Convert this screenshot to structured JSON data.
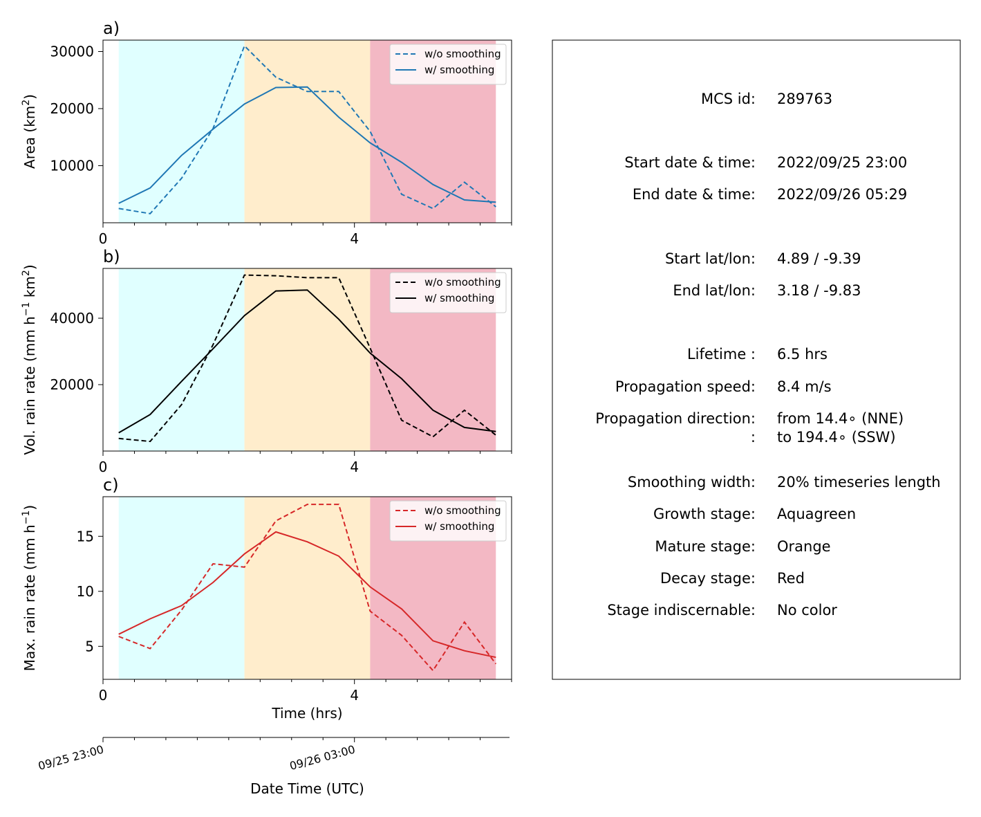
{
  "chart_data": [
    {
      "panel_label": "a)",
      "type": "line",
      "ylabel": "Area  (km",
      "ylabel_sup": "2",
      "ylabel_tail": ")",
      "xlim": [
        0,
        6.5
      ],
      "ylim": [
        0,
        32000
      ],
      "xticks": [
        0,
        4
      ],
      "xtick_labels": [
        "0",
        "4"
      ],
      "yticks": [
        10000,
        20000,
        30000
      ],
      "ytick_labels": [
        "10000",
        "20000",
        "30000"
      ],
      "legend": "top-right",
      "series": [
        {
          "name": "w/o smoothing",
          "style": "dashed",
          "color": "#1f77b4",
          "x": [
            0.25,
            0.75,
            1.25,
            1.75,
            2.25,
            2.75,
            3.25,
            3.75,
            4.25,
            4.75,
            5.25,
            5.75,
            6.25
          ],
          "y": [
            2500,
            1600,
            7800,
            16500,
            31000,
            25500,
            23000,
            23000,
            16000,
            5000,
            2500,
            7100,
            2800
          ]
        },
        {
          "name": "w/ smoothing",
          "style": "solid",
          "color": "#1f77b4",
          "x": [
            0.25,
            0.75,
            1.25,
            1.75,
            2.25,
            2.75,
            3.25,
            3.75,
            4.25,
            4.75,
            5.25,
            5.75,
            6.25
          ],
          "y": [
            3400,
            6100,
            11800,
            16400,
            20800,
            23700,
            23800,
            18500,
            14000,
            10600,
            6700,
            4000,
            3600
          ]
        }
      ]
    },
    {
      "panel_label": "b)",
      "type": "line",
      "ylabel": "Vol. rain rate (mm h",
      "ylabel_sup": "−1",
      "ylabel_mid": " km",
      "ylabel_sup2": "2",
      "ylabel_tail": ")",
      "xlim": [
        0,
        6.5
      ],
      "ylim": [
        0,
        55000
      ],
      "xticks": [
        0,
        4
      ],
      "xtick_labels": [
        "0",
        "4"
      ],
      "yticks": [
        20000,
        40000
      ],
      "ytick_labels": [
        "20000",
        "40000"
      ],
      "legend": "top-right",
      "series": [
        {
          "name": "w/o smoothing",
          "style": "dashed",
          "color": "#000000",
          "x": [
            0.25,
            0.75,
            1.25,
            1.75,
            2.25,
            2.75,
            3.25,
            3.75,
            4.25,
            4.75,
            5.25,
            5.75,
            6.25
          ],
          "y": [
            3800,
            2900,
            14000,
            32000,
            53000,
            52800,
            52200,
            52200,
            31000,
            9300,
            4300,
            12300,
            4800
          ]
        },
        {
          "name": "w/ smoothing",
          "style": "solid",
          "color": "#000000",
          "x": [
            0.25,
            0.75,
            1.25,
            1.75,
            2.25,
            2.75,
            3.25,
            3.75,
            4.25,
            4.75,
            5.25,
            5.75,
            6.25
          ],
          "y": [
            5500,
            11000,
            21000,
            30800,
            40800,
            48200,
            48500,
            39700,
            29500,
            21800,
            12300,
            7100,
            5900
          ]
        }
      ]
    },
    {
      "panel_label": "c)",
      "type": "line",
      "ylabel": "Max. rain rate  (mm h",
      "ylabel_sup": "−1",
      "ylabel_tail": ")",
      "xlabel": "Time (hrs)",
      "xlim": [
        0,
        6.5
      ],
      "ylim": [
        2,
        18.6
      ],
      "xticks": [
        0,
        4
      ],
      "xtick_labels": [
        "0",
        "4"
      ],
      "yticks": [
        5,
        10,
        15
      ],
      "ytick_labels": [
        "5",
        "10",
        "15"
      ],
      "legend": "top-right",
      "series": [
        {
          "name": "w/o smoothing",
          "style": "dashed",
          "color": "#d62728",
          "x": [
            0.25,
            0.75,
            1.25,
            1.75,
            2.25,
            2.75,
            3.25,
            3.75,
            4.25,
            4.75,
            5.25,
            5.75,
            6.25
          ],
          "y": [
            5.9,
            4.8,
            8.3,
            12.5,
            12.2,
            16.4,
            17.9,
            17.9,
            8.2,
            6.0,
            2.8,
            7.2,
            3.4
          ]
        },
        {
          "name": "w/ smoothing",
          "style": "solid",
          "color": "#d62728",
          "x": [
            0.25,
            0.75,
            1.25,
            1.75,
            2.25,
            2.75,
            3.25,
            3.75,
            4.25,
            4.75,
            5.25,
            5.75,
            6.25
          ],
          "y": [
            6.1,
            7.5,
            8.7,
            10.8,
            13.4,
            15.4,
            14.5,
            13.2,
            10.4,
            8.4,
            5.5,
            4.6,
            4.0
          ]
        }
      ]
    }
  ],
  "stages": [
    {
      "name": "growth",
      "start": 0.25,
      "end": 2.25,
      "color": "#e0ffff"
    },
    {
      "name": "mature",
      "start": 2.25,
      "end": 4.25,
      "color": "#ffedcc"
    },
    {
      "name": "decay",
      "start": 4.25,
      "end": 6.25,
      "color": "#f3b8c4"
    }
  ],
  "date_axis": {
    "xlabel": "Date Time (UTC)",
    "ticks": [
      {
        "hours": 0,
        "label": "09/25 23:00"
      },
      {
        "hours": 4,
        "label": "09/26 03:00"
      }
    ]
  },
  "info_panel": {
    "rows": [
      {
        "label": "MCS id:",
        "value": "289763"
      },
      {
        "label": "Start date & time:",
        "value": "2022/09/25 23:00"
      },
      {
        "label": "End date & time:",
        "value": "2022/09/26 05:29"
      },
      {
        "label": "Start lat/lon:",
        "value": "4.89 / -9.39"
      },
      {
        "label": "End lat/lon:",
        "value": "3.18 / -9.83"
      },
      {
        "label": "Lifetime :",
        "value": "6.5 hrs"
      },
      {
        "label": "Propagation speed:",
        "value": "8.4 m/s"
      },
      {
        "label": "Propagation direction:",
        "value": "from  14.4∘ (NNE)"
      },
      {
        "label": ":",
        "value": "to   194.4∘ (SSW)"
      },
      {
        "label": "Smoothing width:",
        "value": "20% timeseries length"
      },
      {
        "label": "Growth stage:",
        "value": "Aquagreen"
      },
      {
        "label": "Mature stage:",
        "value": "Orange"
      },
      {
        "label": "Decay stage:",
        "value": "Red"
      },
      {
        "label": "Stage indiscernable:",
        "value": "No color"
      }
    ]
  }
}
